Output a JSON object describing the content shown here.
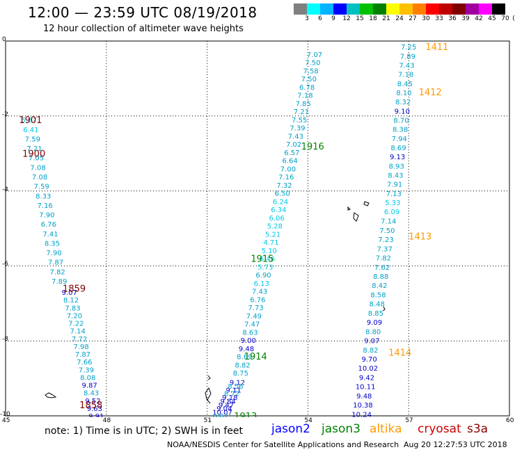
{
  "header": {
    "title": "12:00 — 23:59 UTC 08/19/2018",
    "subtitle": "12 hour collection of altimeter wave heights"
  },
  "colorbar": {
    "colors": [
      "#7f7f7f",
      "#00ffff",
      "#00b4ff",
      "#0000ff",
      "#00c0c0",
      "#00c000",
      "#008000",
      "#ffff00",
      "#ffc000",
      "#ff8000",
      "#ff0000",
      "#c00000",
      "#800000",
      "#a000a0",
      "#ff00ff",
      "#000000"
    ],
    "labels": [
      "3",
      "6",
      "9",
      "12",
      "15",
      "18",
      "21",
      "24",
      "27",
      "30",
      "33",
      "36",
      "39",
      "42",
      "45",
      "70",
      "(ft)"
    ]
  },
  "axes": {
    "lon_ticks": [
      "45",
      "48",
      "51",
      "54",
      "57",
      "60"
    ],
    "lat_ticks": [
      "0",
      "-2",
      "-4",
      "-6",
      "-8",
      "-10"
    ]
  },
  "chart_data": {
    "type": "scatter",
    "x_range": [
      45,
      60
    ],
    "y_range": [
      -10,
      0
    ],
    "passes": [
      {
        "label": "1900",
        "satellite": "cryosat",
        "lon": 45.5,
        "lat": -3.0
      },
      {
        "label": "1901",
        "satellite": "cryosat",
        "lon": 45.4,
        "lat": -2.1
      },
      {
        "label": "1859",
        "satellite": "cryosat",
        "lon": 46.7,
        "lat": -6.6
      },
      {
        "label": "1858",
        "satellite": "cryosat",
        "lon": 47.2,
        "lat": -9.7
      },
      {
        "label": "1916",
        "satellite": "jason3",
        "lon": 53.8,
        "lat": -2.8
      },
      {
        "label": "1915",
        "satellite": "jason3",
        "lon": 52.3,
        "lat": -5.8
      },
      {
        "label": "1914",
        "satellite": "jason3",
        "lon": 52.1,
        "lat": -8.4
      },
      {
        "label": "1913",
        "satellite": "jason3",
        "lon": 51.8,
        "lat": -10.0
      },
      {
        "label": "1411",
        "satellite": "altika",
        "lon": 57.5,
        "lat": -0.15
      },
      {
        "label": "1412",
        "satellite": "altika",
        "lon": 57.3,
        "lat": -1.35
      },
      {
        "label": "1413",
        "satellite": "altika",
        "lon": 57.0,
        "lat": -5.2
      },
      {
        "label": "1414",
        "satellite": "altika",
        "lon": 56.4,
        "lat": -8.3
      }
    ],
    "tracks": [
      {
        "name": "track-a",
        "x0": 45.7,
        "y0": -2.1,
        "x1": 46.6,
        "y1": -6.4,
        "values": [
          "5.87",
          "6.41",
          "7.59",
          "7.21",
          "7.05",
          "7.08",
          "7.08",
          "7.59",
          "8.33",
          "7.16",
          "7.90",
          "6.76",
          "7.41",
          "8.35",
          "7.90",
          "7.87",
          "7.82",
          "7.89"
        ]
      },
      {
        "name": "track-b",
        "x0": 46.9,
        "y0": -6.7,
        "x1": 47.7,
        "y1": -10.0,
        "values": [
          "9.07",
          "8.12",
          "7.83",
          "7.20",
          "7.22",
          "7.14",
          "7.72",
          "7.98",
          "7.87",
          "7.66",
          "7.39",
          "8.08",
          "9.87",
          "8.43",
          "9.52",
          "9.63",
          "9.91"
        ]
      },
      {
        "name": "track-c",
        "x0": 54.2,
        "y0": -0.35,
        "x1": 52.0,
        "y1": -8.85,
        "values": [
          "7.07",
          "7.50",
          "7.58",
          "7.50",
          "6.78",
          "7.18",
          "7.85",
          "7.21",
          "7.55",
          "7.39",
          "7.43",
          "7.02",
          "6.57",
          "6.64",
          "7.00",
          "7.16",
          "7.32",
          "6.50",
          "6.24",
          "6.34",
          "6.06",
          "5.28",
          "5.21",
          "4.71",
          "5.10",
          "6.46",
          "5.73",
          "6.90",
          "6.13",
          "7.43",
          "6.76",
          "7.73",
          "7.49",
          "7.47",
          "8.63",
          "9.00",
          "9.48",
          "8.69",
          "8.82",
          "8.75"
        ]
      },
      {
        "name": "track-d",
        "x0": 51.9,
        "y0": -9.1,
        "x1": 51.4,
        "y1": -10.0,
        "values": [
          "9.12",
          "8.56",
          "9.11",
          "8.72",
          "9.18",
          "9.84",
          "9.47",
          "9.04",
          "10.07",
          "8.62"
        ]
      },
      {
        "name": "track-e",
        "x0": 57.0,
        "y0": -0.15,
        "x1": 56.5,
        "y1": -4.55,
        "values": [
          "7.25",
          "7.89",
          "7.43",
          "7.18",
          "8.45",
          "8.10",
          "8.32",
          "9.10",
          "8.70",
          "8.38",
          "7.94",
          "8.69",
          "9.13",
          "8.93",
          "8.43",
          "7.91",
          "7.13",
          "5.33",
          "6.09"
        ]
      },
      {
        "name": "track-f",
        "x0": 56.4,
        "y0": -4.8,
        "x1": 55.6,
        "y1": -9.95,
        "values": [
          "7.14",
          "7.50",
          "7.23",
          "7.37",
          "7.82",
          "7.62",
          "8.88",
          "8.42",
          "8.58",
          "8.48",
          "8.85",
          "9.09",
          "8.80",
          "9.07",
          "8.82",
          "9.70",
          "10.02",
          "9.42",
          "10.11",
          "9.48",
          "10.38",
          "10.24"
        ]
      }
    ]
  },
  "legend": {
    "note": "note: 1) Time is in UTC; 2) SWH is in feet",
    "items": [
      {
        "label": "jason2",
        "color": "#0000ff"
      },
      {
        "label": "jason3",
        "color": "#008000"
      },
      {
        "label": "altika",
        "color": "#ff9900"
      },
      {
        "label": "cryosat",
        "color": "#cc0000"
      },
      {
        "label": "s3a",
        "color": "#8b0000"
      }
    ]
  },
  "footer": {
    "credit": "NOAA/NESDIS Center for Satellite Applications and Research",
    "timestamp": "Aug 20 12:27:53 UTC 2018"
  },
  "colors": {
    "cyan_text": "#00c8e6",
    "teal_text": "#00a0c8",
    "blue_text": "#0000c8",
    "cryosat_label": "#800000",
    "jason3_label": "#008000",
    "altika_label": "#ff9900"
  }
}
